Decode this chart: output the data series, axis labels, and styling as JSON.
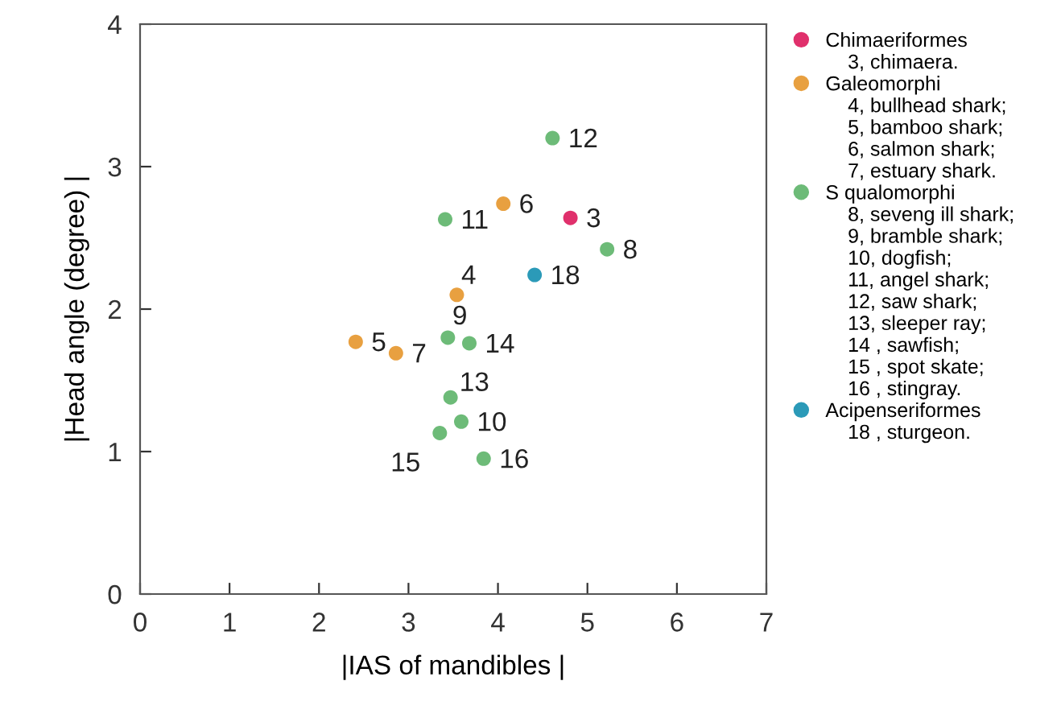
{
  "chart_data": {
    "type": "scatter",
    "xlabel": "|IAS of mandibles |",
    "ylabel": "|Head angle (degree) |",
    "xlim": [
      0,
      7
    ],
    "ylim": [
      0,
      4
    ],
    "xticks": [
      0,
      1,
      2,
      3,
      4,
      5,
      6,
      7
    ],
    "yticks": [
      0,
      1,
      2,
      3,
      4
    ],
    "grid": false,
    "legend": "right",
    "marker": "circle",
    "series": [
      {
        "name": "Chimaeriformes",
        "color": "#e0306c",
        "x": [
          4.81
        ],
        "values": [
          2.64
        ]
      },
      {
        "name": "Galeomorphi",
        "color": "#e8a040",
        "x": [
          3.54,
          2.41,
          4.06,
          2.86
        ],
        "values": [
          2.1,
          1.77,
          2.74,
          1.69
        ]
      },
      {
        "name": "S qualomorphi",
        "color": "#6dbb78",
        "x": [
          5.22,
          3.44,
          3.59,
          3.41,
          4.61,
          3.47,
          3.68,
          3.35,
          3.84
        ],
        "values": [
          2.42,
          1.8,
          1.21,
          2.63,
          3.2,
          1.38,
          1.76,
          1.13,
          0.95
        ]
      },
      {
        "name": "Acipenseriformes",
        "color": "#2b9ab8",
        "x": [
          4.41
        ],
        "values": [
          2.24
        ]
      }
    ],
    "annotations": [
      "3, chimaera.",
      "4, bullhead shark;",
      "5, bamboo shark;",
      "6, salmon shark;",
      "7, estuary shark.",
      "8, seveng ill shark;",
      "9, bramble shark;",
      "10, dogfish;",
      "11, angel shark;",
      "12, saw shark;",
      "13, sleeper ray;",
      "14 , sawfish;",
      "15 , spot skate;",
      "16 , stingray.",
      "18 , sturgeon.",
      {
        "text": "3",
        "x": 4.81,
        "y": 2.64
      },
      {
        "text": "4",
        "x": 3.54,
        "y": 2.1
      },
      {
        "text": "5",
        "x": 2.41,
        "y": 1.77
      },
      {
        "text": "6",
        "x": 4.06,
        "y": 2.74
      },
      {
        "text": "7",
        "x": 2.86,
        "y": 1.69
      },
      {
        "text": "8",
        "x": 5.22,
        "y": 2.42
      },
      {
        "text": "9",
        "x": 3.44,
        "y": 1.8
      },
      {
        "text": "10",
        "x": 3.59,
        "y": 1.21
      },
      {
        "text": "11",
        "x": 3.41,
        "y": 2.63
      },
      {
        "text": "12",
        "x": 4.61,
        "y": 3.2
      },
      {
        "text": "13",
        "x": 3.47,
        "y": 1.38
      },
      {
        "text": "14",
        "x": 3.68,
        "y": 1.76
      },
      {
        "text": "15",
        "x": 3.35,
        "y": 1.13
      },
      {
        "text": "16",
        "x": 3.84,
        "y": 0.95
      },
      {
        "text": "18",
        "x": 4.41,
        "y": 2.24
      }
    ]
  }
}
